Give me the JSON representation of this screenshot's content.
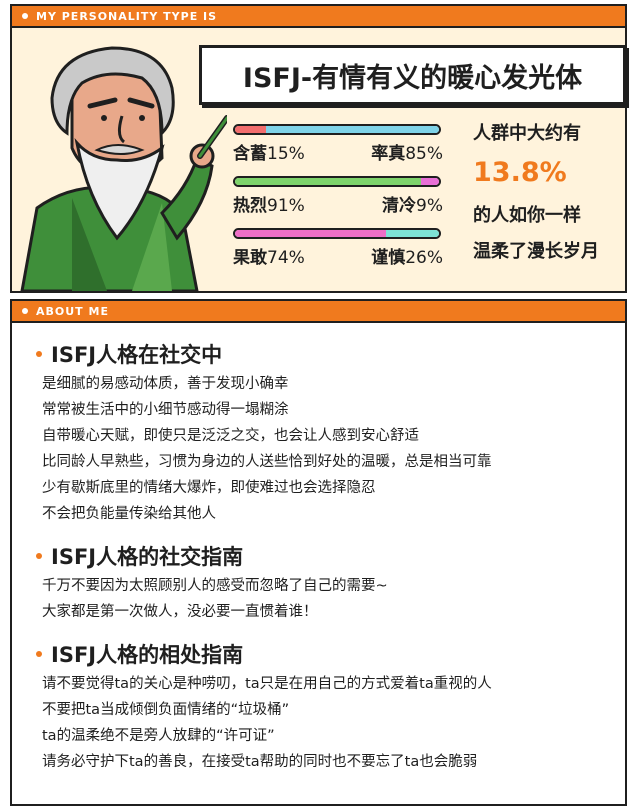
{
  "header_type": "MY PERSONALITY TYPE IS",
  "title": "ISFJ-有情有义的暖心发光体",
  "traits": [
    {
      "left_label": "含蓄",
      "left_pct": "15%",
      "right_label": "率真",
      "right_pct": "85%",
      "left_value": 15,
      "left_color": "#f26d6d",
      "right_color": "#7fd3e8"
    },
    {
      "left_label": "热烈",
      "left_pct": "91%",
      "right_label": "清冷",
      "right_pct": "9%",
      "left_value": 91,
      "left_color": "#7ed36b",
      "right_color": "#e86fd6"
    },
    {
      "left_label": "果敢",
      "left_pct": "74%",
      "right_label": "谨慎",
      "right_pct": "26%",
      "left_value": 74,
      "left_color": "#ef6ec7",
      "right_color": "#7de3d6"
    }
  ],
  "stat": {
    "line1": "人群中大约有",
    "percent": "13.8%",
    "line2": "的人如你一样",
    "line3": "温柔了漫长岁月"
  },
  "header_about": "ABOUT ME",
  "sections": [
    {
      "title": "ISFJ人格在社交中",
      "lines": [
        "是细腻的易感动体质，善于发现小确幸",
        "常常被生活中的小细节感动得一塌糊涂",
        "自带暖心天赋，即使只是泛泛之交，也会让人感到安心舒适",
        "比同龄人早熟些，习惯为身边的人送些恰到好处的温暖，总是相当可靠",
        "少有歇斯底里的情绪大爆炸，即使难过也会选择隐忍",
        "不会把负能量传染给其他人"
      ]
    },
    {
      "title": "ISFJ人格的社交指南",
      "lines": [
        "千万不要因为太照顾别人的感受而忽略了自己的需要~",
        "大家都是第一次做人，没必要一直惯着谁！"
      ]
    },
    {
      "title": "ISFJ人格的相处指南",
      "lines": [
        "请不要觉得ta的关心是种唠叨，ta只是在用自己的方式爱着ta重视的人",
        "不要把ta当成倾倒负面情绪的“垃圾桶”",
        "ta的温柔绝不是旁人放肆的“许可证”",
        "请务必守护下ta的善良，在接受ta帮助的同时也不要忘了ta也会脆弱"
      ]
    }
  ],
  "icons": [
    "wizard-illustration"
  ],
  "colors": {
    "accent": "#f07a1e",
    "panel_bg": "#fff3dc"
  }
}
